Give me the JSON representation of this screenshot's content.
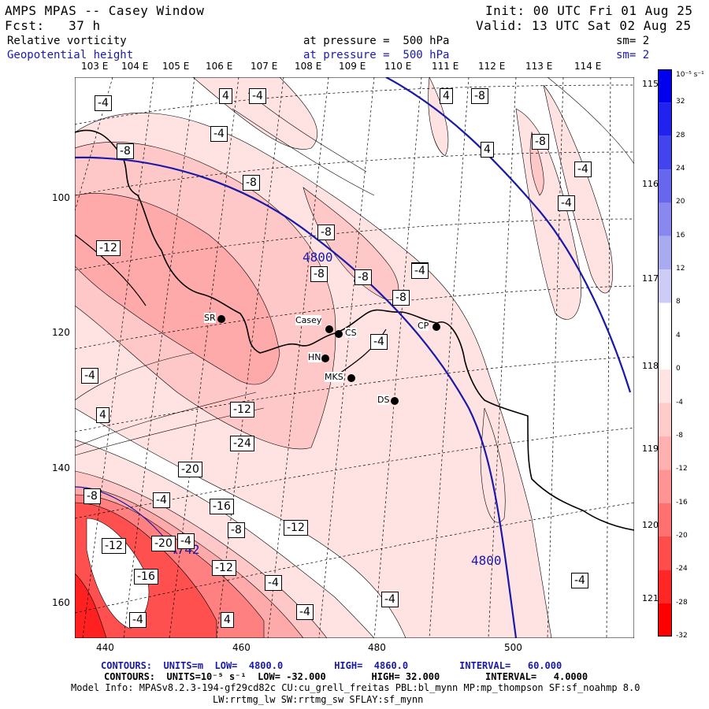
{
  "header": {
    "title": "AMPS MPAS -- Casey Window",
    "init": "Init: 00 UTC Fri 01 Aug 25",
    "fcst": "Fcst:   37 h",
    "valid": "Valid: 13 UTC Sat 02 Aug 25"
  },
  "fields": [
    {
      "name": "Relative vorticity",
      "pressure": "at pressure =  500 hPa",
      "sm": "sm= 2"
    },
    {
      "name": "Geopotential height",
      "pressure": "at pressure =  500 hPa",
      "sm": "sm= 2"
    }
  ],
  "lon_labels": [
    "103 E",
    "104 E",
    "105 E",
    "106 E",
    "107 E",
    "108 E",
    "109 E",
    "110 E",
    "111 E",
    "112 E",
    "113 E",
    "114 E"
  ],
  "lon_right_labels": [
    "115 E",
    "116 E",
    "117 E",
    "118 E",
    "119 E",
    "120 E",
    "121 E"
  ],
  "x_ticks": [
    "440",
    "460",
    "480",
    "500"
  ],
  "y_ticks": [
    "100",
    "120",
    "140",
    "160"
  ],
  "stations": [
    {
      "name": "SR"
    },
    {
      "name": "Casey"
    },
    {
      "name": "CS"
    },
    {
      "name": "HN"
    },
    {
      "name": "MKS"
    },
    {
      "name": "DS"
    },
    {
      "name": "CP"
    }
  ],
  "height_labels": [
    "4800",
    "4800",
    "4742"
  ],
  "vort_labels": [
    "-4",
    "4",
    "-4",
    "4",
    "-8",
    "-8",
    "-4",
    "4",
    "-8",
    "-4",
    "-4",
    "-8",
    "-12",
    "-8",
    "-8",
    "-4",
    "-4",
    "-12",
    "-8",
    "-4",
    "4",
    "-24",
    "-20",
    "-8",
    "-4",
    "-16",
    "-12",
    "-8",
    "-4",
    "-12",
    "-20",
    "-16",
    "-12",
    "-4",
    "-4",
    "4",
    "-4",
    "-4",
    "-4",
    "-8",
    "-4"
  ],
  "colorbar": {
    "unit": "10⁻⁵ s⁻¹",
    "levels": [
      "32",
      "28",
      "24",
      "20",
      "16",
      "12",
      "8",
      "4",
      "0",
      "-4",
      "-8",
      "-12",
      "-16",
      "-20",
      "-24",
      "-28",
      "-32"
    ],
    "colors": [
      "#0000ee",
      "#2222ee",
      "#4444ee",
      "#6666ee",
      "#8888ee",
      "#aaaaf0",
      "#ccccf6",
      "#ffffff",
      "#ffffff",
      "#ffe4e4",
      "#ffcccc",
      "#ffb0b0",
      "#ff9494",
      "#ff7070",
      "#ff4c4c",
      "#ff2626",
      "#ff0000"
    ]
  },
  "footer": {
    "contours_z": "CONTOURS:  UNITS=m  LOW=  4800.0         HIGH=  4860.0         INTERVAL=   60.000",
    "contours_v": "CONTOURS:  UNITS=10⁻⁵ s⁻¹  LOW= -32.000        HIGH= 32.000        INTERVAL=   4.0000",
    "model_info": "Model Info: MPASv8.2.3-194-gf29cd82c CU:cu_grell_freitas PBL:bl_mynn MP:mp_thompson SF:sf_noahmp 8.0",
    "model_info2": "LW:rrtmg_lw SW:rrtmg_sw SFLAY:sf_mynn"
  },
  "colors": {
    "height_contour": "#1a1aa8",
    "accent": "#1a1aa8"
  }
}
